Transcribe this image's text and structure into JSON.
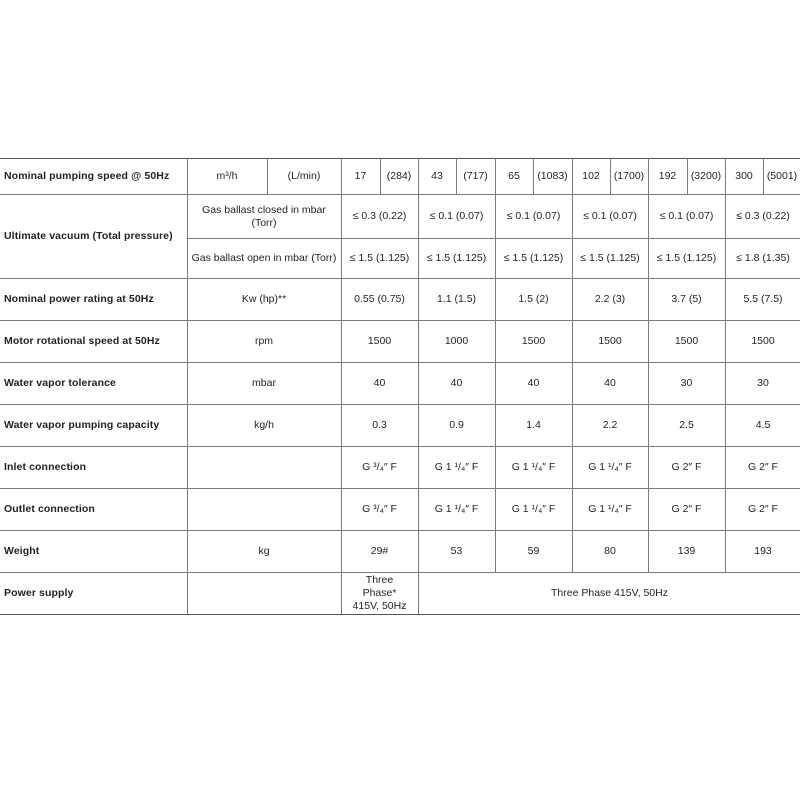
{
  "header_row": {
    "label": "Nominal pumping speed @ 50Hz",
    "unit1": "m³/h",
    "unit2": "(L/min)",
    "models": [
      {
        "m3h": "17",
        "lmin": "(284)"
      },
      {
        "m3h": "43",
        "lmin": "(717)"
      },
      {
        "m3h": "65",
        "lmin": "(1083)"
      },
      {
        "m3h": "102",
        "lmin": "(1700)"
      },
      {
        "m3h": "192",
        "lmin": "(3200)"
      },
      {
        "m3h": "300",
        "lmin": "(5001)"
      }
    ]
  },
  "ultimate_vacuum": {
    "label": "Ultimate vacuum (Total pressure)",
    "closed": {
      "unit": "Gas ballast closed in mbar (Torr)",
      "values": [
        "≤ 0.3 (0.22)",
        "≤ 0.1 (0.07)",
        "≤ 0.1 (0.07)",
        "≤ 0.1 (0.07)",
        "≤ 0.1 (0.07)",
        "≤ 0.3 (0.22)"
      ]
    },
    "open": {
      "unit": "Gas ballast open in mbar (Torr)",
      "values": [
        "≤ 1.5 (1.125)",
        "≤ 1.5 (1.125)",
        "≤ 1.5 (1.125)",
        "≤ 1.5 (1.125)",
        "≤ 1.5 (1.125)",
        "≤ 1.8 (1.35)"
      ]
    }
  },
  "rows": [
    {
      "label": "Nominal power rating at 50Hz",
      "unit": "Kw (hp)**",
      "values": [
        "0.55 (0.75)",
        "1.1 (1.5)",
        "1.5 (2)",
        "2.2 (3)",
        "3.7 (5)",
        "5.5 (7.5)"
      ]
    },
    {
      "label": "Motor rotational speed at 50Hz",
      "unit": "rpm",
      "values": [
        "1500",
        "1000",
        "1500",
        "1500",
        "1500",
        "1500"
      ]
    },
    {
      "label": "Water vapor tolerance",
      "unit": "mbar",
      "values": [
        "40",
        "40",
        "40",
        "40",
        "30",
        "30"
      ]
    },
    {
      "label": "Water vapor pumping capacity",
      "unit": "kg/h",
      "values": [
        "0.3",
        "0.9",
        "1.4",
        "2.2",
        "2.5",
        "4.5"
      ]
    },
    {
      "label": "Inlet connection",
      "unit": "",
      "values": [
        "G ³/₄″ F",
        "G 1 ¹/₄″ F",
        "G 1 ¹/₄″ F",
        "G 1 ¹/₄″ F",
        "G 2″ F",
        "G 2″ F"
      ]
    },
    {
      "label": "Outlet connection",
      "unit": "",
      "values": [
        "G ³/₄″ F",
        "G 1 ¹/₄″ F",
        "G 1 ¹/₄″ F",
        "G 1 ¹/₄″ F",
        "G 2″ F",
        "G 2″ F"
      ]
    },
    {
      "label": "Weight",
      "unit": "kg",
      "values": [
        "29#",
        "53",
        "59",
        "80",
        "139",
        "193"
      ]
    }
  ],
  "power_supply": {
    "label": "Power supply",
    "unit": "",
    "first": "Three Phase* 415V, 50Hz",
    "rest": "Three Phase 415V, 50Hz"
  }
}
